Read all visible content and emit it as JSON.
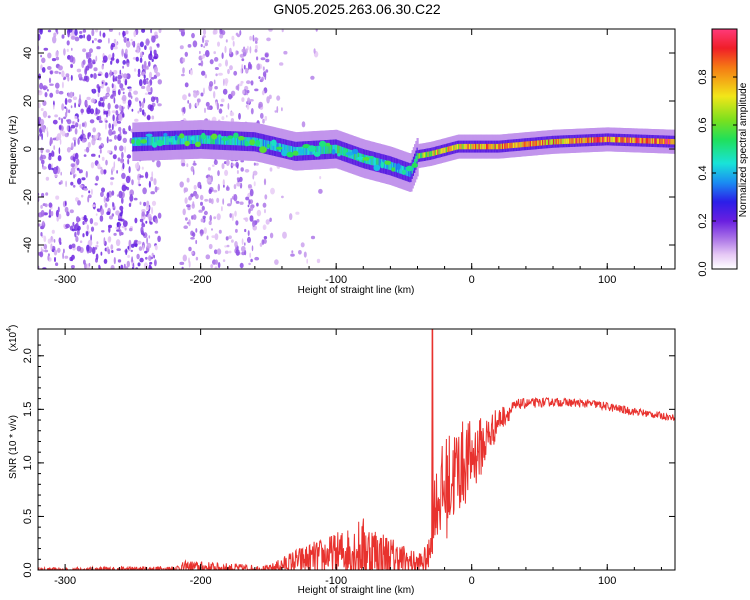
{
  "title": "GN05.2025.263.06.30.C22",
  "chart_data": [
    {
      "type": "heatmap",
      "name": "spectrogram",
      "xlabel": "Height of straight line (km)",
      "ylabel": "Frequency (Hz)",
      "xlim": [
        -320,
        150
      ],
      "ylim": [
        -50,
        50
      ],
      "xticks": [
        -300,
        -200,
        -100,
        0,
        100
      ],
      "yticks": [
        -40,
        -20,
        0,
        20,
        40
      ],
      "colorbar": {
        "label": "Normalized spectral amplitude",
        "range": [
          0.0,
          1.0
        ],
        "ticks": [
          "0.0",
          "0.2",
          "0.4",
          "0.6",
          "0.8"
        ]
      },
      "ridge": [
        {
          "x": -250,
          "f": 3,
          "amp": 0.45
        },
        {
          "x": -200,
          "f": 4,
          "amp": 0.5
        },
        {
          "x": -160,
          "f": 3,
          "amp": 0.45
        },
        {
          "x": -130,
          "f": -1,
          "amp": 0.45
        },
        {
          "x": -100,
          "f": 0,
          "amp": 0.55
        },
        {
          "x": -80,
          "f": -4,
          "amp": 0.5
        },
        {
          "x": -60,
          "f": -7,
          "amp": 0.45
        },
        {
          "x": -45,
          "f": -10,
          "amp": 0.4
        },
        {
          "x": -40,
          "f": -3,
          "amp": 0.6
        },
        {
          "x": -30,
          "f": -2,
          "amp": 0.75
        },
        {
          "x": -10,
          "f": 1,
          "amp": 0.8
        },
        {
          "x": 20,
          "f": 1,
          "amp": 0.85
        },
        {
          "x": 60,
          "f": 3,
          "amp": 0.85
        },
        {
          "x": 100,
          "f": 4,
          "amp": 0.9
        },
        {
          "x": 150,
          "f": 3,
          "amp": 0.95
        }
      ]
    },
    {
      "type": "line",
      "name": "snr",
      "xlabel": "Height of straight line (km)",
      "ylabel": "SNR (10 * v/v)",
      "yscale_label": "(x10",
      "yscale_exp": "4",
      "xlim": [
        -320,
        150
      ],
      "ylim": [
        0,
        2.25
      ],
      "xticks": [
        -300,
        -200,
        -100,
        0,
        100
      ],
      "yticks": [
        "0.0",
        "0.5",
        "1.0",
        "1.5",
        "2.0"
      ],
      "color": "#e8322e",
      "envelope": [
        {
          "x": -320,
          "base": 0.0,
          "noise": 0.02
        },
        {
          "x": -220,
          "base": 0.01,
          "noise": 0.03
        },
        {
          "x": -210,
          "base": 0.03,
          "noise": 0.06
        },
        {
          "x": -150,
          "base": 0.01,
          "noise": 0.03
        },
        {
          "x": -130,
          "base": 0.08,
          "noise": 0.12
        },
        {
          "x": -100,
          "base": 0.15,
          "noise": 0.2
        },
        {
          "x": -80,
          "base": 0.2,
          "noise": 0.3
        },
        {
          "x": -60,
          "base": 0.12,
          "noise": 0.2
        },
        {
          "x": -40,
          "base": 0.06,
          "noise": 0.1
        },
        {
          "x": -32,
          "base": 0.1,
          "noise": 0.15
        },
        {
          "x": -28,
          "base": 0.6,
          "noise": 0.3
        },
        {
          "x": -20,
          "base": 0.75,
          "noise": 0.5
        },
        {
          "x": -10,
          "base": 0.95,
          "noise": 0.45
        },
        {
          "x": 0,
          "base": 1.05,
          "noise": 0.35
        },
        {
          "x": 10,
          "base": 1.2,
          "noise": 0.25
        },
        {
          "x": 20,
          "base": 1.4,
          "noise": 0.12
        },
        {
          "x": 35,
          "base": 1.55,
          "noise": 0.05
        },
        {
          "x": 60,
          "base": 1.57,
          "noise": 0.04
        },
        {
          "x": 90,
          "base": 1.55,
          "noise": 0.04
        },
        {
          "x": 110,
          "base": 1.5,
          "noise": 0.04
        },
        {
          "x": 150,
          "base": 1.42,
          "noise": 0.03
        }
      ],
      "spike": {
        "x": -29,
        "y": 2.25
      }
    }
  ]
}
